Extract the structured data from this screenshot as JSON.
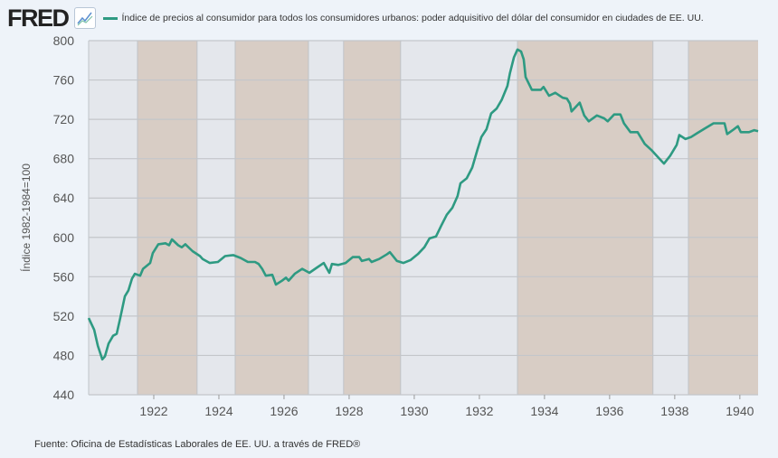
{
  "header": {
    "logo": "FRED",
    "legend": "Índice de precios al consumidor para todos los consumidores urbanos: poder adquisitivo del dólar del consumidor en ciudades de EE. UU."
  },
  "footer": {
    "source": "Fuente: Oficina de Estadísticas Laborales de EE. UU. a través de FRED®"
  },
  "chart_data": {
    "type": "line",
    "title": "",
    "ylabel": "Índice 1982-1984=100",
    "xlabel": "",
    "xlim": [
      1920.0,
      1940.56
    ],
    "ylim": [
      440,
      800
    ],
    "yticks": [
      440,
      480,
      520,
      560,
      600,
      640,
      680,
      720,
      760,
      800
    ],
    "xticks": [
      1922,
      1924,
      1926,
      1928,
      1930,
      1932,
      1934,
      1936,
      1938,
      1940
    ],
    "grid": true,
    "line_color": "#2e9a82",
    "band_colors": {
      "shaded": "#e4e7ec",
      "other": "#d8cdc5"
    },
    "shaded_periods": [
      [
        1920.0,
        1921.5
      ],
      [
        1923.33,
        1924.5
      ],
      [
        1926.75,
        1927.83
      ],
      [
        1929.58,
        1933.17
      ],
      [
        1937.33,
        1938.42
      ]
    ],
    "series": [
      {
        "name": "Índice de precios al consumidor para todos los consumidores urbanos: poder adquisitivo del dólar del consumidor en ciudades de EE. UU.",
        "points": [
          [
            1920.0,
            518
          ],
          [
            1920.17,
            506
          ],
          [
            1920.28,
            490
          ],
          [
            1920.42,
            476
          ],
          [
            1920.5,
            479
          ],
          [
            1920.61,
            492
          ],
          [
            1920.75,
            500
          ],
          [
            1920.86,
            502
          ],
          [
            1920.97,
            518
          ],
          [
            1921.11,
            540
          ],
          [
            1921.22,
            546
          ],
          [
            1921.33,
            558
          ],
          [
            1921.42,
            563
          ],
          [
            1921.58,
            561
          ],
          [
            1921.67,
            568
          ],
          [
            1921.89,
            574
          ],
          [
            1921.97,
            584
          ],
          [
            1922.14,
            593
          ],
          [
            1922.36,
            594
          ],
          [
            1922.47,
            592
          ],
          [
            1922.56,
            598
          ],
          [
            1922.75,
            592
          ],
          [
            1922.86,
            590
          ],
          [
            1922.97,
            593
          ],
          [
            1923.19,
            586
          ],
          [
            1923.42,
            581
          ],
          [
            1923.5,
            578
          ],
          [
            1923.72,
            574
          ],
          [
            1923.97,
            575
          ],
          [
            1924.19,
            581
          ],
          [
            1924.44,
            582
          ],
          [
            1924.67,
            579
          ],
          [
            1924.89,
            575
          ],
          [
            1925.11,
            575
          ],
          [
            1925.22,
            573
          ],
          [
            1925.33,
            568
          ],
          [
            1925.44,
            561
          ],
          [
            1925.64,
            562
          ],
          [
            1925.75,
            552
          ],
          [
            1925.94,
            556
          ],
          [
            1926.06,
            559
          ],
          [
            1926.14,
            556
          ],
          [
            1926.33,
            563
          ],
          [
            1926.56,
            568
          ],
          [
            1926.78,
            564
          ],
          [
            1927.0,
            569
          ],
          [
            1927.22,
            574
          ],
          [
            1927.39,
            564
          ],
          [
            1927.47,
            573
          ],
          [
            1927.67,
            572
          ],
          [
            1927.89,
            574
          ],
          [
            1928.11,
            580
          ],
          [
            1928.31,
            580
          ],
          [
            1928.39,
            576
          ],
          [
            1928.61,
            578
          ],
          [
            1928.69,
            575
          ],
          [
            1928.92,
            578
          ],
          [
            1929.17,
            583
          ],
          [
            1929.25,
            585
          ],
          [
            1929.47,
            576
          ],
          [
            1929.67,
            574
          ],
          [
            1929.89,
            577
          ],
          [
            1930.11,
            583
          ],
          [
            1930.31,
            590
          ],
          [
            1930.47,
            599
          ],
          [
            1930.67,
            601
          ],
          [
            1930.83,
            612
          ],
          [
            1931.0,
            623
          ],
          [
            1931.17,
            630
          ],
          [
            1931.33,
            642
          ],
          [
            1931.42,
            655
          ],
          [
            1931.61,
            660
          ],
          [
            1931.78,
            671
          ],
          [
            1931.94,
            689
          ],
          [
            1932.06,
            702
          ],
          [
            1932.22,
            710
          ],
          [
            1932.36,
            726
          ],
          [
            1932.53,
            731
          ],
          [
            1932.69,
            740
          ],
          [
            1932.86,
            754
          ],
          [
            1932.94,
            767
          ],
          [
            1933.06,
            783
          ],
          [
            1933.17,
            791
          ],
          [
            1933.28,
            789
          ],
          [
            1933.36,
            781
          ],
          [
            1933.42,
            763
          ],
          [
            1933.61,
            750
          ],
          [
            1933.89,
            750
          ],
          [
            1933.97,
            753
          ],
          [
            1934.14,
            744
          ],
          [
            1934.33,
            747
          ],
          [
            1934.56,
            742
          ],
          [
            1934.69,
            741
          ],
          [
            1934.78,
            736
          ],
          [
            1934.83,
            728
          ],
          [
            1935.08,
            737
          ],
          [
            1935.22,
            724
          ],
          [
            1935.36,
            718
          ],
          [
            1935.61,
            724
          ],
          [
            1935.83,
            721
          ],
          [
            1935.94,
            718
          ],
          [
            1936.14,
            725
          ],
          [
            1936.33,
            725
          ],
          [
            1936.44,
            716
          ],
          [
            1936.64,
            707
          ],
          [
            1936.86,
            707
          ],
          [
            1937.08,
            695
          ],
          [
            1937.28,
            689
          ],
          [
            1937.5,
            681
          ],
          [
            1937.67,
            675
          ],
          [
            1937.86,
            683
          ],
          [
            1938.06,
            694
          ],
          [
            1938.14,
            704
          ],
          [
            1938.33,
            700
          ],
          [
            1938.5,
            702
          ],
          [
            1938.69,
            706
          ],
          [
            1938.94,
            711
          ],
          [
            1939.19,
            716
          ],
          [
            1939.53,
            716
          ],
          [
            1939.61,
            705
          ],
          [
            1939.78,
            709
          ],
          [
            1939.94,
            713
          ],
          [
            1940.03,
            707
          ],
          [
            1940.28,
            707
          ],
          [
            1940.44,
            709
          ],
          [
            1940.56,
            708
          ]
        ]
      }
    ]
  }
}
